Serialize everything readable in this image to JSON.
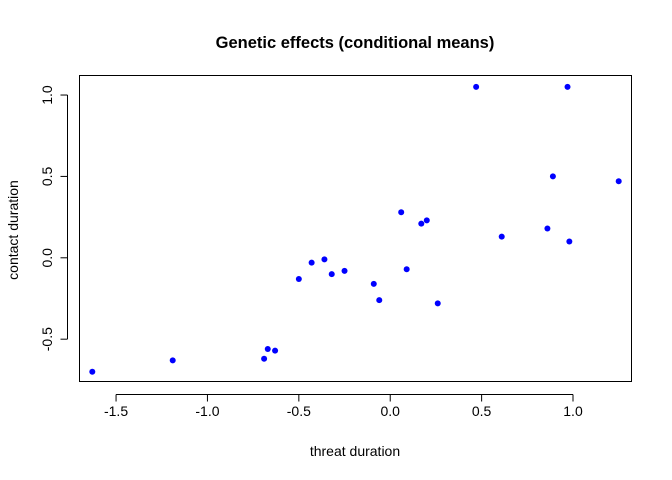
{
  "chart_data": {
    "type": "scatter",
    "title": "Genetic effects (conditional means)",
    "xlabel": "threat duration",
    "ylabel": "contact duration",
    "xlim": [
      -1.7,
      1.32
    ],
    "ylim": [
      -0.76,
      1.12
    ],
    "xticks": [
      "-1.5",
      "-1.0",
      "-0.5",
      "0.0",
      "0.5",
      "1.0"
    ],
    "yticks": [
      "-0.5",
      "0.0",
      "0.5",
      "1.0"
    ],
    "grid": false,
    "point_color": "#0000ff",
    "points": [
      {
        "x": -1.63,
        "y": -0.7
      },
      {
        "x": -1.19,
        "y": -0.63
      },
      {
        "x": -0.69,
        "y": -0.62
      },
      {
        "x": -0.67,
        "y": -0.56
      },
      {
        "x": -0.63,
        "y": -0.57
      },
      {
        "x": -0.5,
        "y": -0.13
      },
      {
        "x": -0.43,
        "y": -0.03
      },
      {
        "x": -0.36,
        "y": -0.01
      },
      {
        "x": -0.32,
        "y": -0.1
      },
      {
        "x": -0.25,
        "y": -0.08
      },
      {
        "x": -0.09,
        "y": -0.16
      },
      {
        "x": -0.06,
        "y": -0.26
      },
      {
        "x": 0.06,
        "y": 0.28
      },
      {
        "x": 0.09,
        "y": -0.07
      },
      {
        "x": 0.17,
        "y": 0.21
      },
      {
        "x": 0.2,
        "y": 0.23
      },
      {
        "x": 0.26,
        "y": -0.28
      },
      {
        "x": 0.47,
        "y": 1.05
      },
      {
        "x": 0.61,
        "y": 0.13
      },
      {
        "x": 0.86,
        "y": 0.18
      },
      {
        "x": 0.89,
        "y": 0.5
      },
      {
        "x": 0.97,
        "y": 1.05
      },
      {
        "x": 0.98,
        "y": 0.1
      },
      {
        "x": 1.25,
        "y": 0.47
      }
    ]
  }
}
